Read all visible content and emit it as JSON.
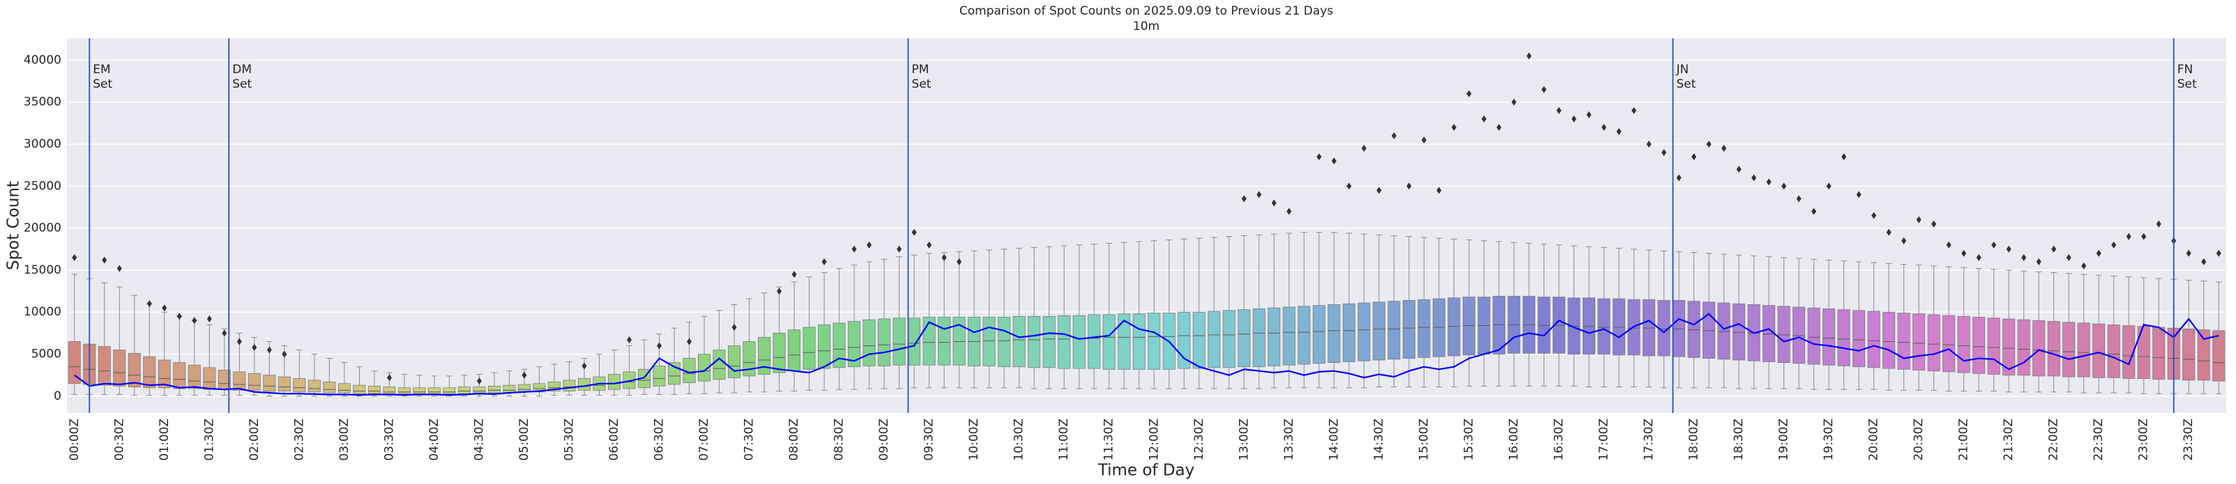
{
  "chart_data": {
    "type": "box",
    "title": "Comparison of Spot Counts on 2025.09.09 to Previous 21 Days",
    "subtitle": "10m",
    "x_label": "Time of Day",
    "y_label": "Spot Count",
    "ylim": [
      -2000,
      42600
    ],
    "yticks": [
      0,
      5000,
      10000,
      15000,
      20000,
      25000,
      30000,
      35000,
      40000
    ],
    "grid": true,
    "palette": "husl",
    "categories": [
      "00:00Z",
      null,
      null,
      "00:30Z",
      null,
      null,
      "01:00Z",
      null,
      null,
      "01:30Z",
      null,
      null,
      "02:00Z",
      null,
      null,
      "02:30Z",
      null,
      null,
      "03:00Z",
      null,
      null,
      "03:30Z",
      null,
      null,
      "04:00Z",
      null,
      null,
      "04:30Z",
      null,
      null,
      "05:00Z",
      null,
      null,
      "05:30Z",
      null,
      null,
      "06:00Z",
      null,
      null,
      "06:30Z",
      null,
      null,
      "07:00Z",
      null,
      null,
      "07:30Z",
      null,
      null,
      "08:00Z",
      null,
      null,
      "08:30Z",
      null,
      null,
      "09:00Z",
      null,
      null,
      "09:30Z",
      null,
      null,
      "10:00Z",
      null,
      null,
      "10:30Z",
      null,
      null,
      "11:00Z",
      null,
      null,
      "11:30Z",
      null,
      null,
      "12:00Z",
      null,
      null,
      "12:30Z",
      null,
      null,
      "13:00Z",
      null,
      null,
      "13:30Z",
      null,
      null,
      "14:00Z",
      null,
      null,
      "14:30Z",
      null,
      null,
      "15:00Z",
      null,
      null,
      "15:30Z",
      null,
      null,
      "16:00Z",
      null,
      null,
      "16:30Z",
      null,
      null,
      "17:00Z",
      null,
      null,
      "17:30Z",
      null,
      null,
      "18:00Z",
      null,
      null,
      "18:30Z",
      null,
      null,
      "19:00Z",
      null,
      null,
      "19:30Z",
      null,
      null,
      "20:00Z",
      null,
      null,
      "20:30Z",
      null,
      null,
      "21:00Z",
      null,
      null,
      "21:30Z",
      null,
      null,
      "22:00Z",
      null,
      null,
      "22:30Z",
      null,
      null,
      "23:00Z",
      null,
      null,
      "23:30Z",
      null,
      null
    ],
    "boxes": {
      "whislo": [
        200,
        200,
        200,
        200,
        100,
        100,
        100,
        100,
        100,
        100,
        100,
        100,
        100,
        0,
        0,
        0,
        0,
        0,
        0,
        0,
        0,
        0,
        0,
        0,
        0,
        0,
        0,
        0,
        0,
        0,
        0,
        0,
        100,
        100,
        100,
        100,
        100,
        100,
        200,
        200,
        200,
        300,
        300,
        400,
        400,
        500,
        500,
        600,
        600,
        700,
        700,
        800,
        800,
        900,
        900,
        900,
        1000,
        1000,
        1000,
        1000,
        1000,
        1000,
        1000,
        1000,
        900,
        900,
        900,
        900,
        900,
        900,
        900,
        900,
        900,
        900,
        900,
        900,
        900,
        900,
        900,
        900,
        1000,
        1000,
        1000,
        1000,
        1000,
        1000,
        1000,
        1100,
        1100,
        1100,
        1100,
        1100,
        1100,
        1200,
        1200,
        1200,
        1200,
        1200,
        1200,
        1200,
        1200,
        1100,
        1100,
        1100,
        1100,
        1100,
        1000,
        1000,
        1000,
        1000,
        1000,
        900,
        900,
        900,
        900,
        900,
        800,
        800,
        800,
        800,
        800,
        700,
        700,
        700,
        700,
        600,
        600,
        600,
        600,
        500,
        500,
        500,
        500,
        500,
        400,
        400,
        400,
        400,
        300,
        300,
        300,
        300,
        300,
        300
      ],
      "q1": [
        1500,
        1400,
        1300,
        1200,
        1100,
        1000,
        1000,
        900,
        900,
        800,
        800,
        700,
        700,
        600,
        600,
        500,
        500,
        400,
        400,
        300,
        300,
        300,
        300,
        300,
        300,
        300,
        300,
        400,
        400,
        400,
        500,
        500,
        600,
        600,
        700,
        700,
        800,
        900,
        1000,
        1200,
        1400,
        1600,
        1800,
        2000,
        2200,
        2400,
        2600,
        2800,
        3000,
        3200,
        3300,
        3400,
        3500,
        3600,
        3600,
        3700,
        3700,
        3700,
        3700,
        3700,
        3600,
        3600,
        3500,
        3500,
        3400,
        3400,
        3300,
        3300,
        3300,
        3200,
        3200,
        3200,
        3200,
        3200,
        3300,
        3300,
        3400,
        3400,
        3500,
        3500,
        3600,
        3700,
        3800,
        3900,
        4000,
        4100,
        4200,
        4300,
        4400,
        4500,
        4600,
        4700,
        4800,
        4900,
        5000,
        5000,
        5100,
        5100,
        5100,
        5100,
        5000,
        5000,
        5000,
        4900,
        4900,
        4800,
        4800,
        4700,
        4600,
        4500,
        4400,
        4300,
        4200,
        4100,
        4000,
        3900,
        3800,
        3700,
        3600,
        3500,
        3400,
        3300,
        3200,
        3100,
        3000,
        2900,
        2800,
        2700,
        2600,
        2500,
        2500,
        2400,
        2400,
        2300,
        2300,
        2200,
        2200,
        2100,
        2100,
        2000,
        2000,
        1900,
        1900,
        1800
      ],
      "median": [
        3500,
        3200,
        3000,
        2800,
        2500,
        2300,
        2100,
        2000,
        1800,
        1700,
        1500,
        1400,
        1300,
        1200,
        1100,
        1000,
        900,
        800,
        700,
        600,
        600,
        500,
        500,
        500,
        500,
        500,
        600,
        600,
        700,
        700,
        800,
        900,
        1000,
        1100,
        1200,
        1300,
        1500,
        1700,
        1900,
        2100,
        2400,
        2700,
        3000,
        3300,
        3600,
        4000,
        4300,
        4600,
        4900,
        5200,
        5400,
        5600,
        5800,
        6000,
        6100,
        6200,
        6300,
        6400,
        6400,
        6500,
        6500,
        6600,
        6600,
        6700,
        6700,
        6800,
        6800,
        6900,
        6900,
        7000,
        7000,
        7000,
        7100,
        7100,
        7200,
        7200,
        7300,
        7300,
        7400,
        7500,
        7500,
        7600,
        7600,
        7700,
        7800,
        7800,
        7900,
        8000,
        8000,
        8100,
        8200,
        8200,
        8300,
        8400,
        8400,
        8500,
        8500,
        8500,
        8400,
        8400,
        8300,
        8300,
        8200,
        8200,
        8100,
        8100,
        8000,
        8000,
        7900,
        7800,
        7700,
        7600,
        7500,
        7400,
        7300,
        7200,
        7000,
        6900,
        6800,
        6700,
        6600,
        6500,
        6400,
        6300,
        6200,
        6100,
        6000,
        5900,
        5800,
        5700,
        5600,
        5500,
        5400,
        5300,
        5200,
        5100,
        5000,
        4800,
        4700,
        4600,
        4500,
        4400,
        4200,
        4000
      ],
      "q3": [
        6500,
        6200,
        5900,
        5500,
        5100,
        4700,
        4300,
        4000,
        3700,
        3400,
        3100,
        2900,
        2700,
        2500,
        2300,
        2100,
        1900,
        1700,
        1500,
        1300,
        1200,
        1100,
        1000,
        1000,
        1000,
        1000,
        1100,
        1100,
        1200,
        1300,
        1400,
        1500,
        1700,
        1900,
        2100,
        2300,
        2600,
        2900,
        3200,
        3600,
        4000,
        4500,
        5000,
        5500,
        6000,
        6500,
        7000,
        7500,
        7900,
        8200,
        8500,
        8700,
        8900,
        9100,
        9200,
        9300,
        9300,
        9400,
        9400,
        9400,
        9400,
        9400,
        9400,
        9500,
        9500,
        9500,
        9600,
        9600,
        9700,
        9700,
        9800,
        9800,
        9900,
        9900,
        10000,
        10000,
        10100,
        10200,
        10300,
        10400,
        10500,
        10600,
        10700,
        10800,
        10900,
        11000,
        11100,
        11200,
        11300,
        11400,
        11500,
        11600,
        11700,
        11800,
        11800,
        11900,
        11900,
        11900,
        11800,
        11800,
        11700,
        11700,
        11600,
        11600,
        11500,
        11500,
        11400,
        11400,
        11300,
        11200,
        11100,
        11000,
        10900,
        10800,
        10700,
        10600,
        10500,
        10400,
        10300,
        10200,
        10100,
        10000,
        9900,
        9800,
        9700,
        9600,
        9500,
        9400,
        9300,
        9200,
        9100,
        9000,
        8900,
        8800,
        8700,
        8600,
        8500,
        8400,
        8300,
        8200,
        8100,
        8000,
        7900,
        7800
      ],
      "whishi": [
        14500,
        14000,
        13500,
        13000,
        12000,
        11000,
        10000,
        9500,
        9000,
        8500,
        8000,
        7500,
        7000,
        6500,
        6000,
        5500,
        5000,
        4500,
        4000,
        3500,
        3000,
        2800,
        2600,
        2500,
        2400,
        2400,
        2500,
        2600,
        2800,
        3000,
        3200,
        3500,
        3800,
        4100,
        4500,
        5000,
        5500,
        6000,
        6700,
        7400,
        8100,
        8800,
        9500,
        10200,
        10900,
        11600,
        12300,
        13000,
        13600,
        14200,
        14700,
        15200,
        15600,
        16000,
        16300,
        16600,
        16800,
        17000,
        17100,
        17200,
        17300,
        17400,
        17500,
        17600,
        17700,
        17800,
        17900,
        18000,
        18100,
        18200,
        18300,
        18400,
        18500,
        18600,
        18700,
        18800,
        18900,
        19000,
        19100,
        19200,
        19300,
        19400,
        19500,
        19500,
        19500,
        19400,
        19300,
        19200,
        19100,
        19000,
        18900,
        18800,
        18700,
        18600,
        18500,
        18400,
        18300,
        18200,
        18100,
        18000,
        17900,
        17800,
        17700,
        17600,
        17500,
        17400,
        17300,
        17200,
        17100,
        17000,
        16900,
        16800,
        16700,
        16600,
        16500,
        16400,
        16300,
        16200,
        16100,
        16000,
        15900,
        15800,
        15700,
        15600,
        15500,
        15400,
        15300,
        15200,
        15100,
        15000,
        14900,
        14800,
        14700,
        14600,
        14500,
        14400,
        14300,
        14200,
        14100,
        14000,
        13900,
        13800,
        13700,
        13600
      ]
    },
    "outliers": {
      "color": "#333333",
      "x": [
        0,
        2,
        3,
        5,
        6,
        7,
        8,
        9,
        10,
        11,
        12,
        13,
        14,
        21,
        27,
        30,
        34,
        37,
        39,
        41,
        44,
        47,
        48,
        50,
        52,
        53,
        55,
        56,
        57,
        58,
        59,
        78,
        79,
        80,
        81,
        83,
        84,
        85,
        86,
        87,
        88,
        89,
        90,
        91,
        92,
        93,
        94,
        95,
        96,
        97,
        98,
        99,
        100,
        101,
        102,
        103,
        104,
        105,
        106,
        107,
        108,
        109,
        110,
        111,
        112,
        113,
        114,
        115,
        116,
        117,
        118,
        119,
        120,
        121,
        122,
        123,
        124,
        125,
        126,
        127,
        128,
        129,
        130,
        131,
        132,
        133,
        134,
        135,
        136,
        137,
        138,
        139,
        140,
        141,
        142,
        143
      ],
      "y": [
        16500,
        16200,
        15200,
        11000,
        10500,
        9500,
        9000,
        9200,
        7500,
        6500,
        5800,
        5500,
        5000,
        2200,
        1800,
        2500,
        3600,
        6700,
        6000,
        6500,
        8200,
        12500,
        14500,
        16000,
        17500,
        18000,
        17500,
        19500,
        18000,
        16500,
        16000,
        23500,
        24000,
        23000,
        22000,
        28500,
        28000,
        25000,
        29500,
        24500,
        31000,
        25000,
        30500,
        24500,
        32000,
        36000,
        33000,
        32000,
        35000,
        40500,
        36500,
        34000,
        33000,
        33500,
        32000,
        31500,
        34000,
        30000,
        29000,
        26000,
        28500,
        30000,
        29500,
        27000,
        26000,
        25500,
        25000,
        23500,
        22000,
        25000,
        28500,
        24000,
        21500,
        19500,
        18500,
        21000,
        20500,
        18000,
        17000,
        16500,
        18000,
        17500,
        16500,
        16000,
        17500,
        16500,
        15500,
        17000,
        18000,
        19000,
        19000,
        20500,
        18500,
        17000,
        16000,
        17000
      ]
    },
    "line": {
      "color": "#0000ff",
      "values": [
        2500,
        1200,
        1500,
        1400,
        1600,
        1300,
        1400,
        1000,
        1100,
        900,
        800,
        900,
        500,
        400,
        300,
        300,
        250,
        200,
        200,
        150,
        200,
        200,
        150,
        200,
        200,
        150,
        200,
        300,
        250,
        400,
        500,
        600,
        800,
        1000,
        1200,
        1500,
        1500,
        1800,
        2200,
        4500,
        3500,
        2800,
        3000,
        4500,
        3000,
        3200,
        3500,
        3200,
        3000,
        2800,
        3500,
        4500,
        4200,
        5000,
        5200,
        5600,
        6000,
        8800,
        8000,
        8500,
        7600,
        8200,
        7800,
        7000,
        7200,
        7500,
        7400,
        6800,
        7000,
        7200,
        9000,
        8000,
        7600,
        6500,
        4500,
        3500,
        3000,
        2500,
        3200,
        3000,
        2800,
        3000,
        2500,
        2900,
        3000,
        2700,
        2200,
        2600,
        2300,
        3000,
        3500,
        3200,
        3500,
        4500,
        5000,
        5500,
        7000,
        7500,
        7200,
        9000,
        8200,
        7500,
        8000,
        7000,
        8300,
        9000,
        7600,
        9200,
        8500,
        9800,
        8000,
        8600,
        7500,
        8000,
        6500,
        7000,
        6200,
        6000,
        5700,
        5400,
        6000,
        5500,
        4500,
        4800,
        5000,
        5600,
        4200,
        4500,
        4400,
        3200,
        4000,
        5500,
        5000,
        4400,
        4800,
        5200,
        4600,
        3800,
        8500,
        8200,
        7000,
        9200,
        6800,
        7200
      ]
    },
    "vlines": {
      "color": "#2a4bc0",
      "x": [
        1.0,
        10.3,
        55.6,
        106.6,
        140.0
      ],
      "labels": [
        "EM\nSet",
        "DM\nSet",
        "PM\nSet",
        "JN\nSet",
        "FN\nSet"
      ]
    }
  }
}
